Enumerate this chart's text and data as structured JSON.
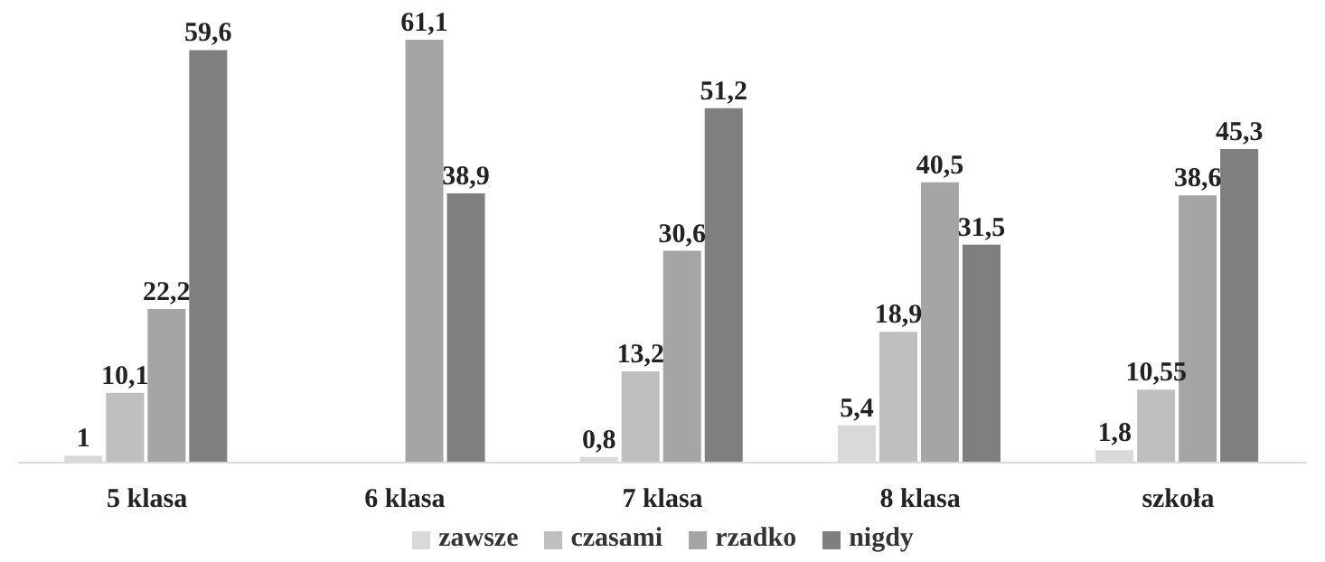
{
  "chart_data": {
    "type": "bar",
    "categories": [
      "5 klasa",
      "6 klasa",
      "7 klasa",
      "8 klasa",
      "szkoła"
    ],
    "series": [
      {
        "name": "zawsze",
        "color": "#d9d9d9",
        "values": [
          1,
          null,
          0.8,
          5.4,
          1.8
        ],
        "value_labels": [
          "1",
          null,
          "0,8",
          "5,4",
          "1,8"
        ]
      },
      {
        "name": "czasami",
        "color": "#bfbfbf",
        "values": [
          10.1,
          null,
          13.2,
          18.9,
          10.55
        ],
        "value_labels": [
          "10,1",
          null,
          "13,2",
          "18,9",
          "10,55"
        ]
      },
      {
        "name": "rzadko",
        "color": "#a5a5a5",
        "values": [
          22.2,
          61.1,
          30.6,
          40.5,
          38.6
        ],
        "value_labels": [
          "22,2",
          "61,1",
          "30,6",
          "40,5",
          "38,6"
        ]
      },
      {
        "name": "nigdy",
        "color": "#7f7f7f",
        "values": [
          59.6,
          38.9,
          51.2,
          31.5,
          45.3
        ],
        "value_labels": [
          "59,6",
          "38,9",
          "51,2",
          "31,5",
          "45,3"
        ]
      }
    ],
    "legend": "bottom"
  }
}
